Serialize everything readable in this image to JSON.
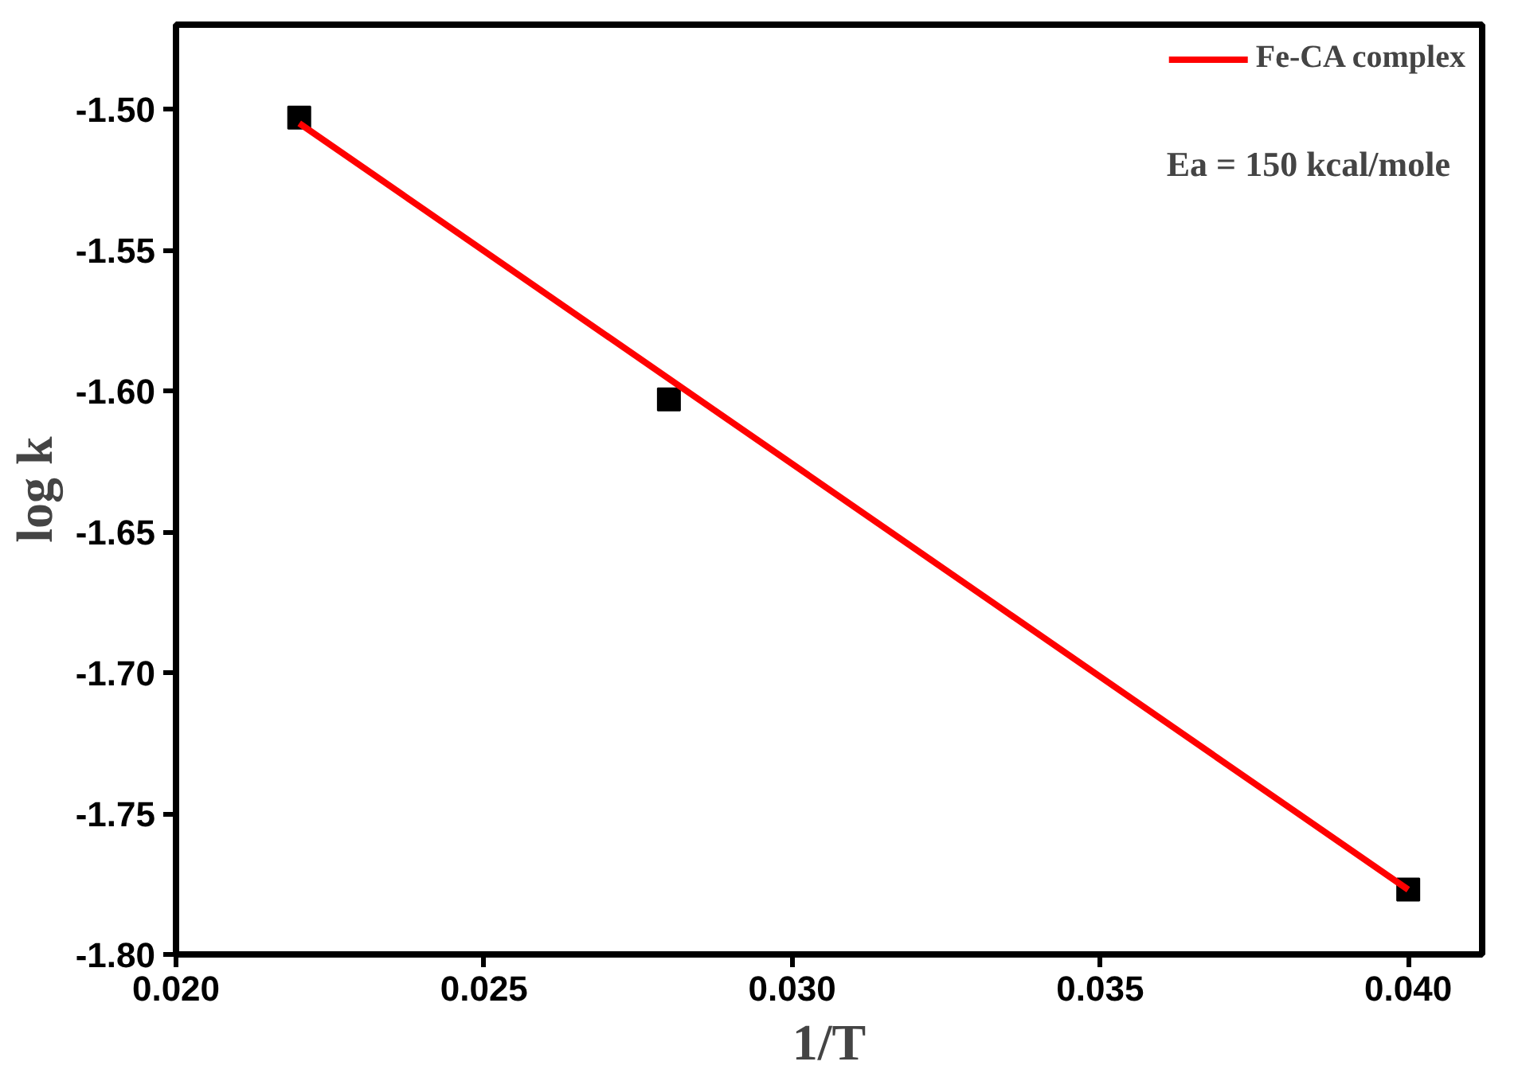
{
  "chart_data": {
    "type": "scatter",
    "xlabel": "1/T",
    "ylabel": "log k",
    "annotations": [
      "Ea = 150 kcal/mole"
    ],
    "xlim": [
      0.02,
      0.0412
    ],
    "ylim": [
      -1.8,
      -1.47
    ],
    "xticks": [
      {
        "value": 0.02,
        "label": "0.020"
      },
      {
        "value": 0.025,
        "label": "0.025"
      },
      {
        "value": 0.03,
        "label": "0.030"
      },
      {
        "value": 0.035,
        "label": "0.035"
      },
      {
        "value": 0.04,
        "label": "0.040"
      }
    ],
    "yticks": [
      {
        "value": -1.8,
        "label": "-1.80"
      },
      {
        "value": -1.75,
        "label": "-1.75"
      },
      {
        "value": -1.7,
        "label": "-1.70"
      },
      {
        "value": -1.65,
        "label": "-1.65"
      },
      {
        "value": -1.6,
        "label": "-1.60"
      },
      {
        "value": -1.55,
        "label": "-1.55"
      },
      {
        "value": -1.5,
        "label": "-1.50"
      }
    ],
    "grid": false,
    "legend": "top right",
    "series": [
      {
        "color": "#000000",
        "marker": "square",
        "x": [
          0.022,
          0.028,
          0.04
        ],
        "values": [
          -1.503,
          -1.603,
          -1.777
        ]
      },
      {
        "type": "line",
        "name": "Fe-CA complex",
        "color": "#ff0000",
        "x": [
          0.022,
          0.04
        ],
        "values": [
          -1.505,
          -1.777
        ],
        "line_style": "solid",
        "marker": "none"
      }
    ]
  }
}
